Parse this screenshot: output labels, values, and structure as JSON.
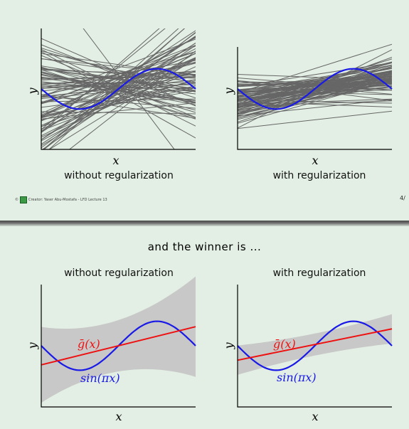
{
  "slide1": {
    "panels": [
      {
        "caption": "without regularization",
        "xlabel": "x",
        "ylabel": "y"
      },
      {
        "caption": "with regularization",
        "xlabel": "x",
        "ylabel": "y"
      }
    ],
    "footer": {
      "copyright": "©",
      "credit": "Creator: Yaser Abu-Mostafa - LFD Lecture 13"
    },
    "page": "4/"
  },
  "slide2": {
    "title": "and the winner is ...",
    "panels": [
      {
        "caption": "without regularization",
        "xlabel": "x",
        "ylabel": "y",
        "gbar_label": "ḡ(x)",
        "sin_label": "sin(πx)"
      },
      {
        "caption": "with regularization",
        "xlabel": "x",
        "ylabel": "y",
        "gbar_label": "ḡ(x)",
        "sin_label": "sin(πx)"
      }
    ]
  },
  "colors": {
    "target": "#1a1ae6",
    "gbar": "#ee1111",
    "hypothesis": "#666666",
    "band": "#c8c8c8"
  }
}
